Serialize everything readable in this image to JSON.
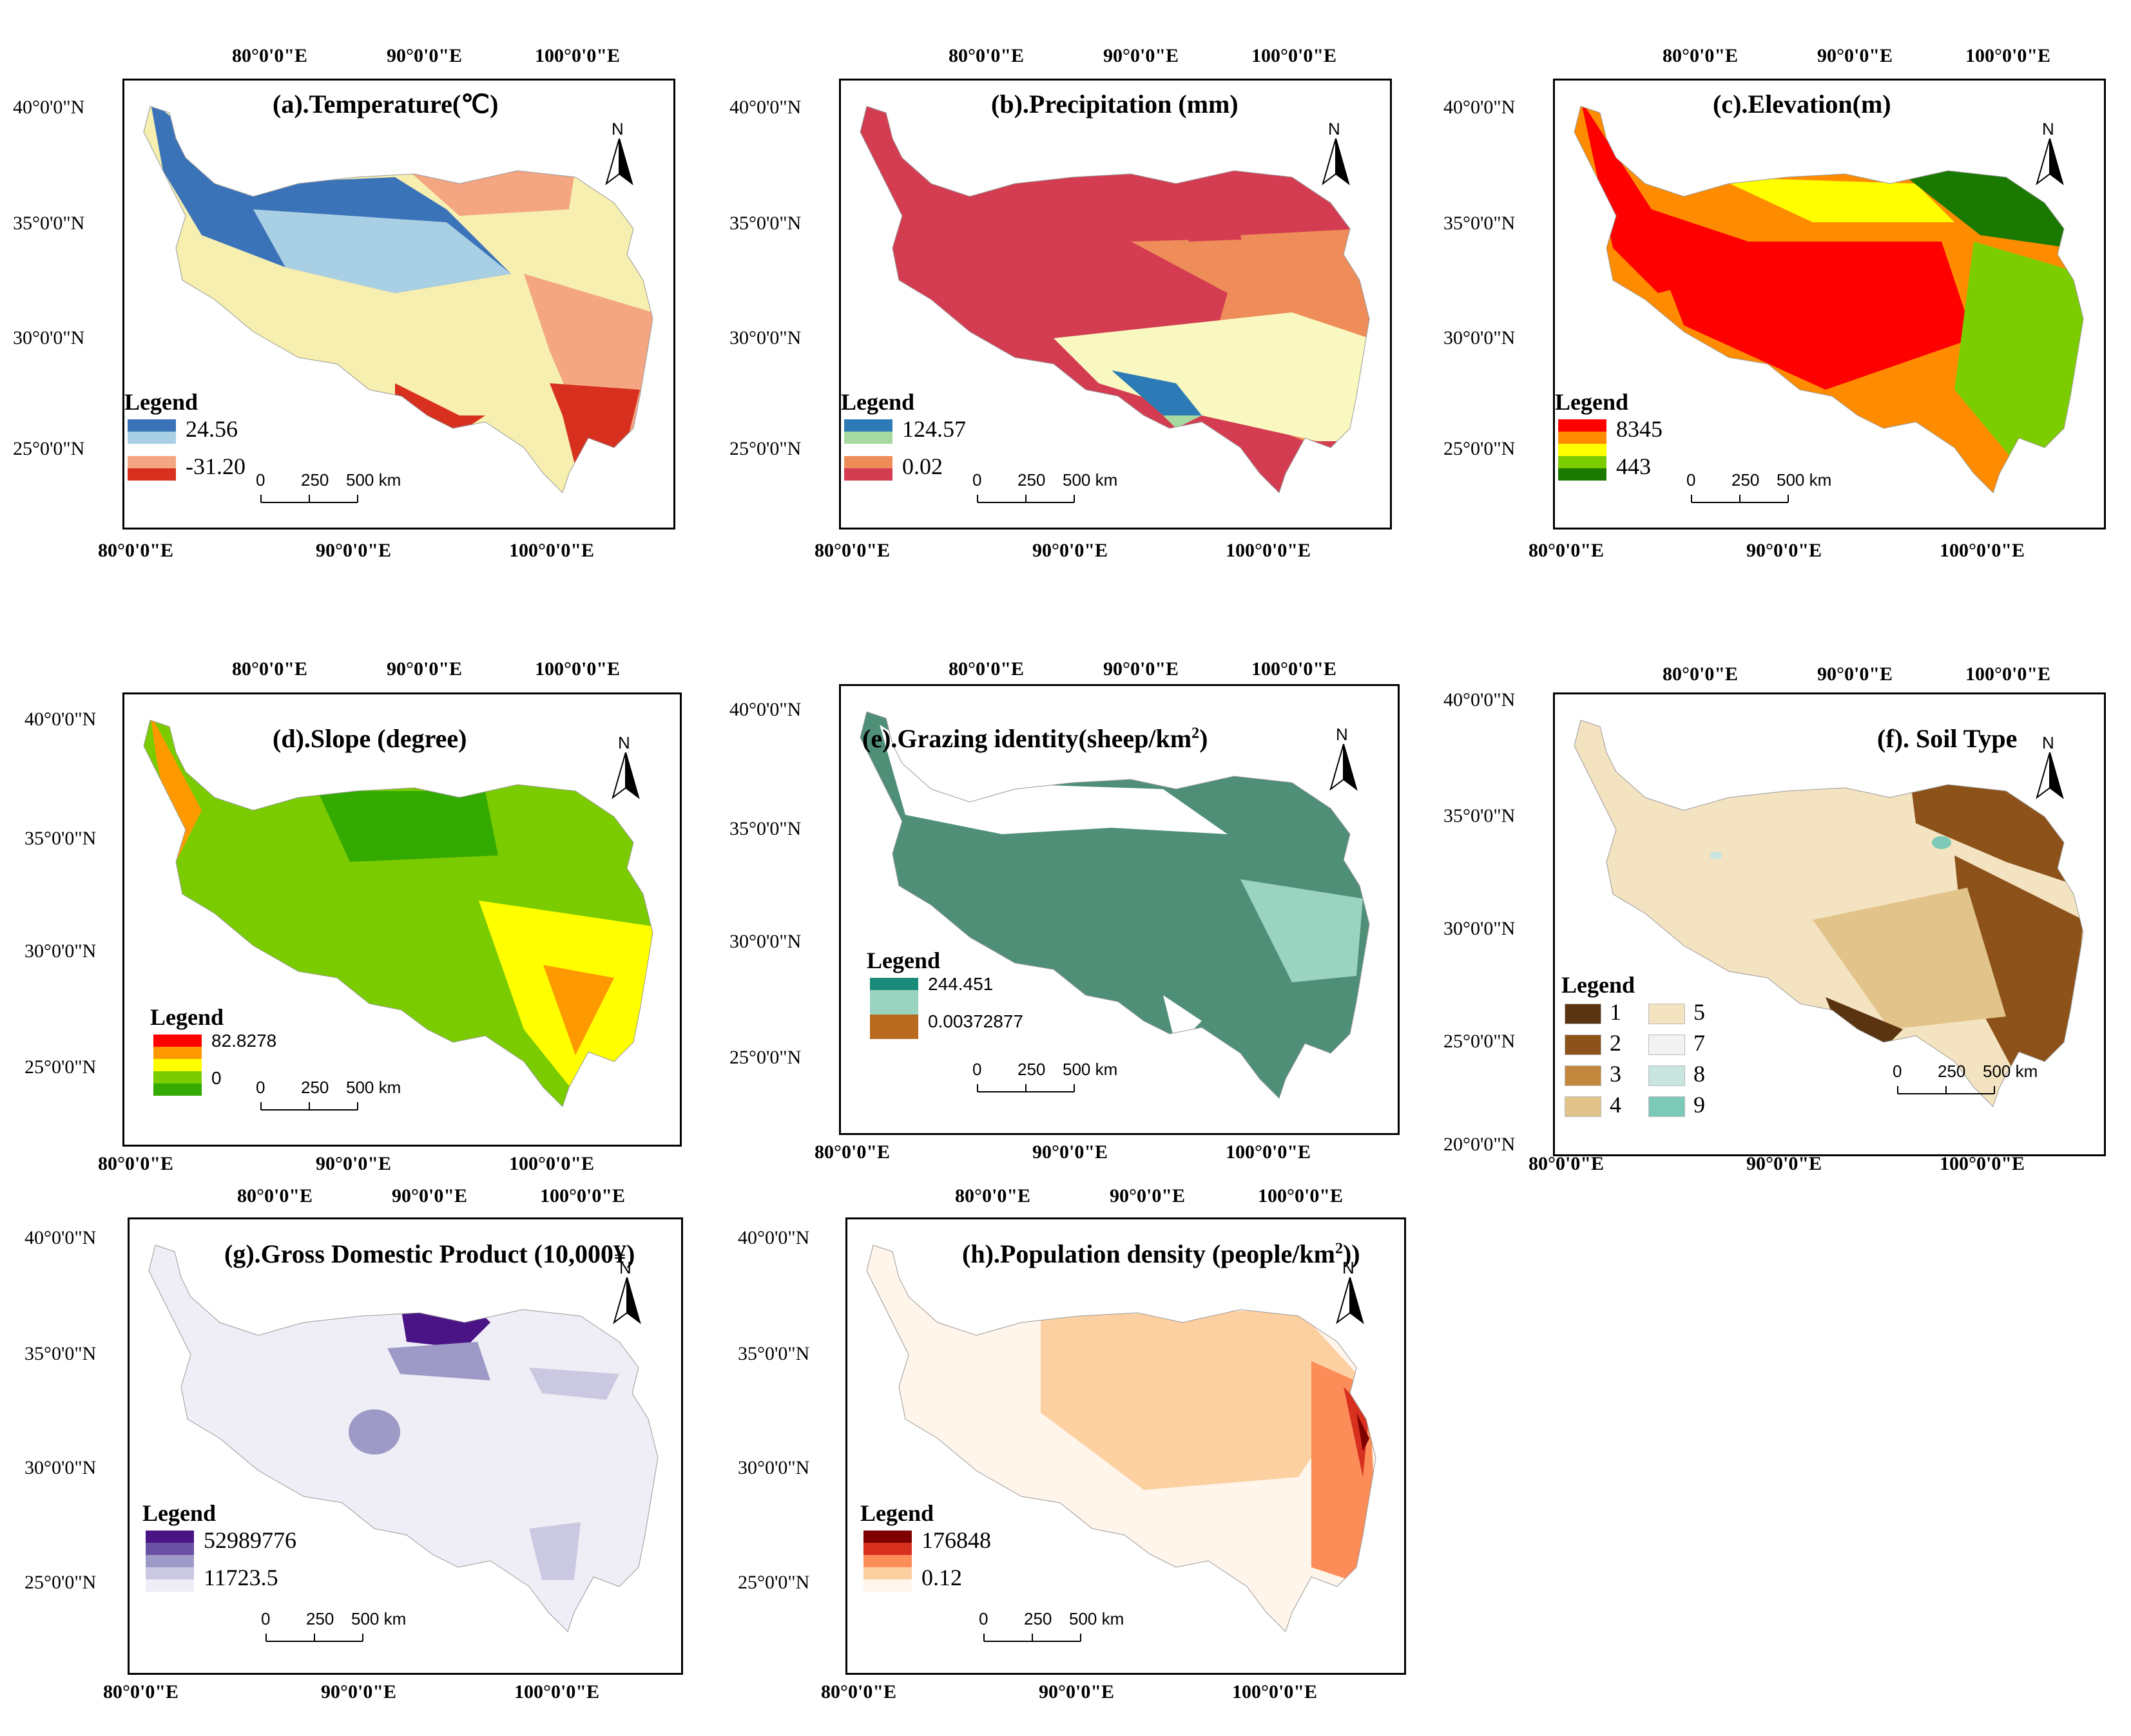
{
  "figure": {
    "panels": [
      {
        "id": "a",
        "title": "(a).Temperature(℃)",
        "top_lons": [
          "80°0'0\"E",
          "90°0'0\"E",
          "100°0'0\"E"
        ],
        "bottom_lons": [
          "80°0'0\"E",
          "90°0'0\"E",
          "100°0'0\"E"
        ],
        "lats": [
          "40°0'0\"N",
          "35°0'0\"N",
          "30°0'0\"N",
          "25°0'0\"N"
        ],
        "legend_title": "Legend",
        "legend_max": "24.56",
        "legend_min": "-31.20",
        "scale": [
          "0",
          "250",
          "500 km"
        ],
        "north": "N",
        "colors": [
          "#3b73b9",
          "#a9cfe5",
          "#f6efb0",
          "#f4a582",
          "#d7301f"
        ]
      },
      {
        "id": "b",
        "title": "(b).Precipitation (mm)",
        "top_lons": [
          "80°0'0\"E",
          "90°0'0\"E",
          "100°0'0\"E"
        ],
        "bottom_lons": [
          "80°0'0\"E",
          "90°0'0\"E",
          "100°0'0\"E"
        ],
        "lats": [
          "40°0'0\"N",
          "35°0'0\"N",
          "30°0'0\"N",
          "25°0'0\"N"
        ],
        "legend_title": "Legend",
        "legend_max": "124.57",
        "legend_min": "0.02",
        "scale": [
          "0",
          "250",
          "500 km"
        ],
        "north": "N",
        "colors": [
          "#2c7bb6",
          "#a6d9a0",
          "#f8f8c0",
          "#ee8c5a",
          "#d43d51"
        ]
      },
      {
        "id": "c",
        "title": "(c).Elevation(m)",
        "top_lons": [
          "80°0'0\"E",
          "90°0'0\"E",
          "100°0'0\"E"
        ],
        "bottom_lons": [
          "80°0'0\"E",
          "90°0'0\"E",
          "100°0'0\"E"
        ],
        "lats": [
          "40°0'0\"N",
          "35°0'0\"N",
          "30°0'0\"N",
          "25°0'0\"N"
        ],
        "legend_title": "Legend",
        "legend_max": "8345",
        "legend_min": "443",
        "scale": [
          "0",
          "250",
          "500 km"
        ],
        "north": "N",
        "colors": [
          "#ff0000",
          "#ff8c00",
          "#ffff00",
          "#7ccd00",
          "#1a7a00"
        ]
      },
      {
        "id": "d",
        "title": "(d).Slope  (degree)",
        "top_lons": [
          "80°0'0\"E",
          "90°0'0\"E",
          "100°0'0\"E"
        ],
        "bottom_lons": [
          "80°0'0\"E",
          "90°0'0\"E",
          "100°0'0\"E"
        ],
        "lats": [
          "40°0'0\"N",
          "35°0'0\"N",
          "30°0'0\"N",
          "25°0'0\"N"
        ],
        "legend_title": "Legend",
        "legend_max": "82.8278",
        "legend_min": "0",
        "scale": [
          "0",
          "250",
          "500 km"
        ],
        "north": "N",
        "colors": [
          "#ff0000",
          "#ff9900",
          "#ffff00",
          "#7acc00",
          "#33aa00"
        ]
      },
      {
        "id": "e",
        "title": "(e).Grazing identity(sheep/km",
        "title_sup": "2",
        "title_end": ")",
        "top_lons": [
          "80°0'0\"E",
          "90°0'0\"E",
          "100°0'0\"E"
        ],
        "bottom_lons": [
          "80°0'0\"E",
          "90°0'0\"E",
          "100°0'0\"E"
        ],
        "lats": [
          "40°0'0\"N",
          "35°0'0\"N",
          "30°0'0\"N",
          "25°0'0\"N"
        ],
        "legend_title": "Legend",
        "legend_max": "244.451",
        "legend_min": "0.00372877",
        "scale": [
          "0",
          "250",
          "500 km"
        ],
        "north": "N",
        "colors": [
          "#1a8a7a",
          "#9ad3c0",
          "#b86b1e",
          "#4f8f77",
          "#ffffff"
        ]
      },
      {
        "id": "f",
        "title": "(f). Soil Type",
        "top_lons": [
          "80°0'0\"E",
          "90°0'0\"E",
          "100°0'0\"E"
        ],
        "bottom_lons": [
          "80°0'0\"E",
          "90°0'0\"E",
          "100°0'0\"E"
        ],
        "lats": [
          "40°0'0\"N",
          "35°0'0\"N",
          "30°0'0\"N",
          "25°0'0\"N",
          "20°0'0\"N"
        ],
        "legend_title": "Legend",
        "soil_classes": [
          {
            "label": "1",
            "color": "#5a3410"
          },
          {
            "label": "2",
            "color": "#8c5219"
          },
          {
            "label": "3",
            "color": "#c4873e"
          },
          {
            "label": "4",
            "color": "#e2c38a"
          },
          {
            "label": "5",
            "color": "#f4e3c1"
          },
          {
            "label": "7",
            "color": "#f2f2f2"
          },
          {
            "label": "8",
            "color": "#c8e6df"
          },
          {
            "label": "9",
            "color": "#7dc9b8"
          }
        ],
        "scale": [
          "0",
          "250",
          "500 km"
        ],
        "north": "N"
      },
      {
        "id": "g",
        "title": "(g).Gross Domestic Product (10,000¥)",
        "top_lons": [
          "80°0'0\"E",
          "90°0'0\"E",
          "100°0'0\"E"
        ],
        "bottom_lons": [
          "80°0'0\"E",
          "90°0'0\"E",
          "100°0'0\"E"
        ],
        "lats": [
          "40°0'0\"N",
          "35°0'0\"N",
          "30°0'0\"N",
          "25°0'0\"N"
        ],
        "legend_title": "Legend",
        "legend_max": "52989776",
        "legend_min": "11723.5",
        "scale": [
          "0",
          "250",
          "500 km"
        ],
        "north": "N",
        "colors": [
          "#4a1486",
          "#6a51a3",
          "#9e9ac8",
          "#cbc9e2",
          "#efedf5"
        ]
      },
      {
        "id": "h",
        "title": "(h).Population density (people/km",
        "title_sup": "2",
        "title_end": "))",
        "top_lons": [
          "80°0'0\"E",
          "90°0'0\"E",
          "100°0'0\"E"
        ],
        "bottom_lons": [
          "80°0'0\"E",
          "90°0'0\"E",
          "100°0'0\"E"
        ],
        "lats": [
          "40°0'0\"N",
          "35°0'0\"N",
          "30°0'0\"N",
          "25°0'0\"N"
        ],
        "legend_title": "Legend",
        "legend_max": "176848",
        "legend_min": "0.12",
        "scale": [
          "0",
          "250",
          "500 km"
        ],
        "north": "N",
        "colors": [
          "#7f0000",
          "#d7301f",
          "#fc8d59",
          "#fdd0a2",
          "#fff5eb"
        ]
      }
    ]
  }
}
